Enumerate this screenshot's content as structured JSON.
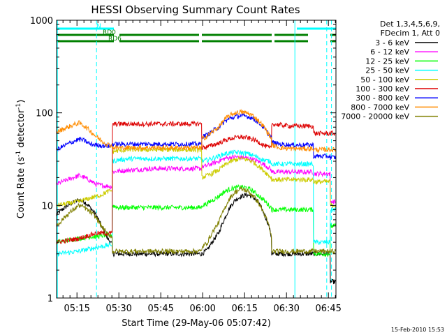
{
  "chart_data": {
    "type": "line",
    "title": "HESSI Observing Summary Count Rates",
    "xlabel": "Start Time (29-May-06 05:07:42)",
    "ylabel_main": "Count Rate (s",
    "ylabel_sup1": "-1",
    "ylabel_mid": " detector",
    "ylabel_sup2": "-1",
    "ylabel_end": ")",
    "x_unit": "minutes after 05:07:42",
    "y_scale": "log",
    "xlim": [
      0,
      100
    ],
    "ylim": [
      1,
      1000
    ],
    "x_tick_labels": [
      {
        "label": "05:15",
        "x": 7.3
      },
      {
        "label": "05:30",
        "x": 22.3
      },
      {
        "label": "05:45",
        "x": 37.3
      },
      {
        "label": "06:00",
        "x": 52.3
      },
      {
        "label": "06:15",
        "x": 67.3
      },
      {
        "label": "06:30",
        "x": 82.3
      },
      {
        "label": "06:45",
        "x": 97.3
      }
    ],
    "y_tick_labels": [
      {
        "label": "1",
        "y": 1
      },
      {
        "label": "10",
        "y": 10
      },
      {
        "label": "100",
        "y": 100
      },
      {
        "label": "1000",
        "y": 1000
      }
    ],
    "legend": {
      "placement": "right",
      "header1": "Det 1,3,4,5,6,9,",
      "header2": "FDecim 1, Att 0",
      "entries": [
        {
          "label": "3 - 6 keV",
          "color": "#000000"
        },
        {
          "label": "6 - 12 keV",
          "color": "#ff00ff"
        },
        {
          "label": "12 - 25 keV",
          "color": "#00ff00"
        },
        {
          "label": "25 - 50 keV",
          "color": "#00ffff"
        },
        {
          "label": "50 - 100 keV",
          "color": "#cccc00"
        },
        {
          "label": "100 - 300 keV",
          "color": "#dd0000"
        },
        {
          "label": "300 - 800 keV",
          "color": "#0000ff"
        },
        {
          "label": "800 - 7000 keV",
          "color": "#ff8c00"
        },
        {
          "label": "7000 - 20000 keV",
          "color": "#808000"
        }
      ]
    },
    "flags": [
      {
        "label": "N",
        "color": "#00ffff",
        "segments": [
          [
            0,
            20.5
          ],
          [
            86,
            100
          ]
        ]
      },
      {
        "label": "RD0",
        "color": "#008000",
        "segments": [
          [
            0,
            20.5
          ],
          [
            22.5,
            51
          ],
          [
            52,
            77
          ],
          [
            78,
            90
          ],
          [
            98,
            100
          ]
        ]
      },
      {
        "label": "RD6",
        "color": "#008000",
        "segments": [
          [
            0,
            20.5
          ],
          [
            22.5,
            51
          ],
          [
            52,
            77
          ],
          [
            78,
            90
          ],
          [
            98,
            100
          ]
        ]
      }
    ],
    "vlines": [
      {
        "x": 0.3,
        "style": "solid",
        "color": "#00ffff"
      },
      {
        "x": 14.3,
        "style": "dashed",
        "color": "#00ffff"
      },
      {
        "x": 85.3,
        "style": "solid",
        "color": "#00ffff"
      },
      {
        "x": 96.7,
        "style": "dashed",
        "color": "#00ffff"
      },
      {
        "x": 98.4,
        "style": "dashed",
        "color": "#00ffff"
      }
    ],
    "x": [
      0,
      4,
      8,
      10,
      12,
      14,
      16,
      18,
      19.9,
      20,
      22,
      26,
      30,
      34,
      38,
      42,
      46,
      50,
      51.9,
      52,
      54,
      58,
      60,
      62,
      64,
      66,
      68,
      70,
      72,
      74,
      76,
      76.9,
      77,
      80,
      84,
      88,
      90,
      91.9,
      92,
      95,
      97.9,
      98,
      100
    ],
    "series": [
      {
        "name": "3 - 6 keV",
        "color": "#000000",
        "values": [
          8,
          10,
          11.5,
          11,
          9.5,
          8,
          6,
          4.5,
          3.8,
          3,
          3,
          3,
          3,
          3,
          3,
          3,
          3,
          3,
          3,
          3,
          3.3,
          5,
          7,
          9.5,
          11.5,
          12.5,
          13,
          12.5,
          11,
          8.5,
          6,
          4.5,
          3,
          3,
          3,
          3,
          3,
          3,
          3,
          3,
          3,
          1.5,
          1.5
        ]
      },
      {
        "name": "6 - 12 keV",
        "color": "#ff00ff",
        "values": [
          17,
          19,
          21,
          20,
          18.5,
          17,
          16.5,
          16.2,
          16,
          23,
          23.5,
          24,
          24.5,
          25,
          25,
          25,
          25,
          25,
          25,
          26,
          27,
          30,
          32,
          33,
          33.5,
          33,
          32.5,
          31.5,
          30,
          28,
          25.5,
          24,
          23,
          23,
          23,
          23,
          23,
          23,
          22,
          22,
          22,
          11,
          11
        ]
      },
      {
        "name": "12 - 25 keV",
        "color": "#00ff00",
        "values": [
          4,
          4.2,
          4.4,
          4.5,
          4.6,
          4.6,
          4.7,
          4.8,
          4.8,
          10,
          9.5,
          9.5,
          9.5,
          9.5,
          9.5,
          9.5,
          9.5,
          9.5,
          9.5,
          10,
          10.5,
          12.5,
          14,
          15,
          15.5,
          15.8,
          15.5,
          14.5,
          13,
          11.5,
          10,
          9.5,
          9,
          9,
          9,
          9,
          9,
          9,
          3,
          3,
          3,
          6,
          6
        ]
      },
      {
        "name": "25 - 50 keV",
        "color": "#00ffff",
        "values": [
          3,
          3.1,
          3.2,
          3.3,
          3.4,
          3.5,
          3.6,
          3.7,
          3.8,
          30,
          31,
          32,
          32,
          32,
          32,
          32,
          32,
          32,
          32,
          30,
          31,
          34,
          36,
          37,
          37.5,
          37,
          36.5,
          35,
          33,
          31,
          30,
          29.5,
          28,
          28,
          28,
          28,
          28,
          28,
          4,
          4,
          4,
          9,
          9
        ]
      },
      {
        "name": "50 - 100 keV",
        "color": "#cccc00",
        "values": [
          10,
          10.5,
          11,
          11.5,
          12,
          12.5,
          13,
          14,
          14.5,
          38,
          39,
          40,
          40,
          40,
          40,
          40,
          40,
          40,
          40,
          20,
          21,
          24,
          27,
          29.5,
          31,
          32,
          31.5,
          30,
          27,
          24,
          21,
          20,
          19,
          19,
          19,
          19,
          19,
          19,
          18,
          18,
          18,
          10,
          10
        ]
      },
      {
        "name": "100 - 300 keV",
        "color": "#dd0000",
        "values": [
          4,
          4.2,
          4.4,
          4.6,
          4.8,
          5,
          5,
          5,
          5,
          75,
          76,
          76,
          76,
          76,
          76,
          76,
          76,
          76,
          76,
          42,
          43,
          47,
          50,
          52.5,
          54,
          55,
          54,
          52,
          49,
          45,
          42,
          41,
          76,
          74,
          72,
          72,
          72,
          72,
          60,
          60,
          60,
          60,
          60
        ]
      },
      {
        "name": "300 - 800 keV",
        "color": "#0000ff",
        "values": [
          40,
          46,
          52,
          50,
          46,
          45,
          44.5,
          44,
          44,
          46,
          46,
          46,
          46,
          46,
          46,
          46,
          46,
          46,
          46,
          55,
          58,
          70,
          80,
          87,
          91,
          93,
          92,
          88,
          80,
          70,
          58,
          55,
          48,
          46,
          45,
          45,
          45,
          45,
          34,
          34,
          34,
          33,
          33
        ]
      },
      {
        "name": "800 - 7000 keV",
        "color": "#ff8c00",
        "values": [
          62,
          70,
          78,
          72,
          64,
          56,
          50,
          46,
          44,
          42,
          42,
          42,
          42,
          42,
          42,
          42,
          42,
          42,
          42,
          52,
          56,
          70,
          84,
          94,
          100,
          102,
          100,
          94,
          84,
          72,
          58,
          53,
          45,
          42,
          41,
          41,
          41,
          41,
          40,
          40,
          40,
          40,
          40
        ]
      },
      {
        "name": "7000 - 20000 keV",
        "color": "#808000",
        "values": [
          6,
          8,
          10,
          9.5,
          8.5,
          7.5,
          6,
          5,
          4.5,
          3.2,
          3.2,
          3.2,
          3.2,
          3.2,
          3.2,
          3.2,
          3.2,
          3.2,
          3.2,
          3.5,
          4,
          6.5,
          9,
          12,
          14,
          15,
          14.5,
          13,
          11,
          8.5,
          6,
          4.5,
          3.2,
          3.2,
          3.2,
          3.2,
          3.2,
          3.2,
          3.2,
          3.2,
          3.2,
          3.2,
          3.2
        ]
      }
    ]
  },
  "footer": {
    "timestamp": "15-Feb-2010 15:53"
  }
}
